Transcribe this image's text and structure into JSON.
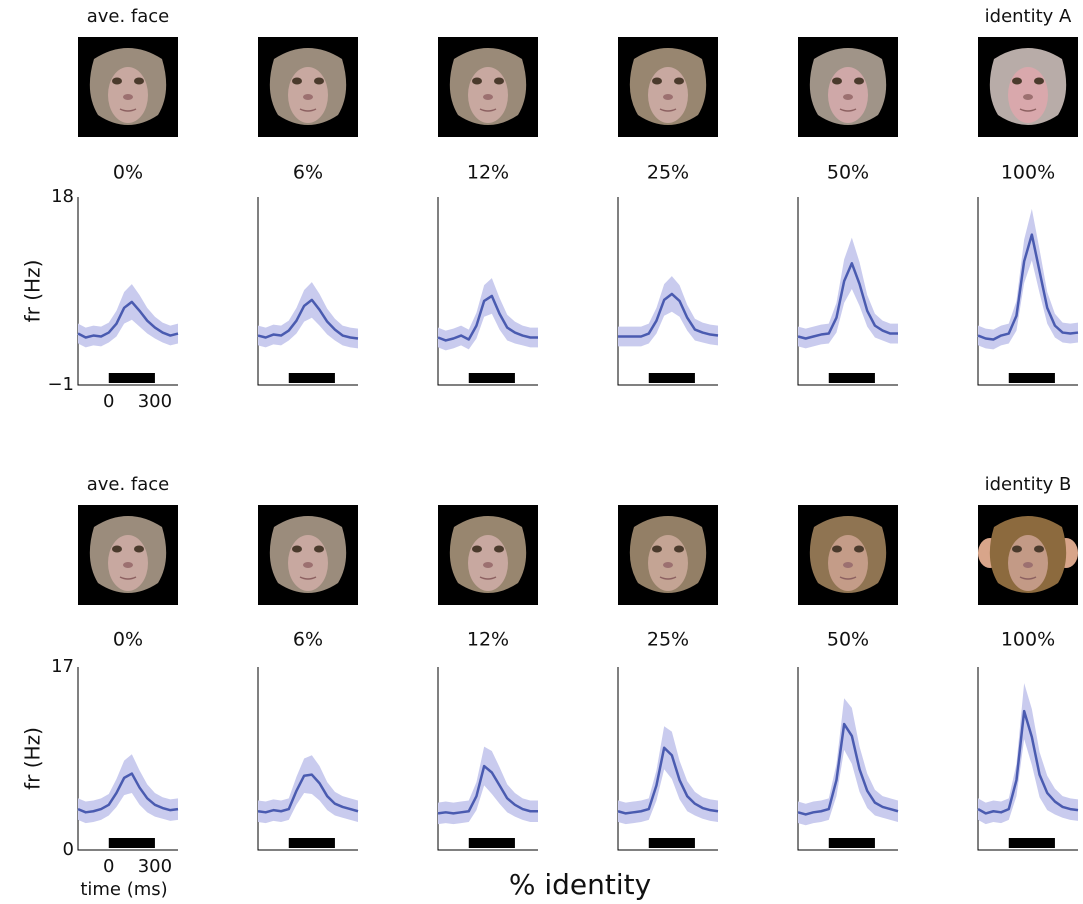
{
  "xlabel": "% identity",
  "chart_data": [
    {
      "type": "line",
      "image_label": "ave. face",
      "title": "0%",
      "ylabel": "fr (Hz)",
      "xlim": [
        -200,
        450
      ],
      "xticks": [
        0,
        300
      ],
      "ylim": [
        -1,
        18
      ],
      "yticks": [
        {
          "value": -1,
          "label": "−1"
        },
        18
      ],
      "stimulus": [
        0,
        300
      ],
      "x": [
        -200,
        -150,
        -100,
        -50,
        0,
        50,
        100,
        150,
        200,
        250,
        300,
        350,
        400,
        450
      ],
      "series": [
        {
          "color": "#4a5bb0",
          "band_color": "#c9cbee",
          "values": [
            4.2,
            3.8,
            4.0,
            3.9,
            4.3,
            5.2,
            6.8,
            7.4,
            6.5,
            5.5,
            4.8,
            4.3,
            4.0,
            4.2
          ],
          "errors": [
            1,
            1,
            1,
            1,
            1,
            1.3,
            1.6,
            1.8,
            1.6,
            1.3,
            1.1,
            1,
            1,
            1
          ]
        }
      ]
    },
    {
      "type": "line",
      "title": "6%",
      "xlim": [
        -200,
        450
      ],
      "ylim": [
        -1,
        18
      ],
      "stimulus": [
        0,
        300
      ],
      "x": [
        -200,
        -150,
        -100,
        -50,
        0,
        50,
        100,
        150,
        200,
        250,
        300,
        350,
        400,
        450
      ],
      "series": [
        {
          "color": "#4a5bb0",
          "band_color": "#c9cbee",
          "values": [
            4.0,
            3.8,
            4.1,
            4.0,
            4.5,
            5.5,
            7.0,
            7.6,
            6.6,
            5.4,
            4.6,
            4.0,
            3.8,
            3.7
          ],
          "errors": [
            1,
            1,
            1,
            1,
            1,
            1.3,
            1.6,
            1.8,
            1.6,
            1.3,
            1.1,
            1,
            1,
            1
          ]
        }
      ]
    },
    {
      "type": "line",
      "title": "12%",
      "xlim": [
        -200,
        450
      ],
      "ylim": [
        -1,
        18
      ],
      "stimulus": [
        0,
        300
      ],
      "x": [
        -200,
        -150,
        -100,
        -50,
        0,
        50,
        100,
        150,
        200,
        250,
        300,
        350,
        400,
        450
      ],
      "series": [
        {
          "color": "#4a5bb0",
          "band_color": "#c9cbee",
          "values": [
            3.8,
            3.5,
            3.7,
            4.0,
            3.6,
            5.0,
            7.5,
            8.0,
            6.2,
            4.8,
            4.3,
            4.0,
            3.8,
            3.8
          ],
          "errors": [
            1,
            1,
            1,
            1,
            1,
            1.3,
            1.6,
            1.8,
            1.6,
            1.3,
            1.1,
            1,
            1,
            1
          ]
        }
      ]
    },
    {
      "type": "line",
      "title": "25%",
      "xlim": [
        -200,
        450
      ],
      "ylim": [
        -1,
        18
      ],
      "stimulus": [
        0,
        300
      ],
      "x": [
        -200,
        -150,
        -100,
        -50,
        0,
        50,
        100,
        150,
        200,
        250,
        300,
        350,
        400,
        450
      ],
      "series": [
        {
          "color": "#4a5bb0",
          "band_color": "#c9cbee",
          "values": [
            3.9,
            3.9,
            3.9,
            3.9,
            4.2,
            5.5,
            7.6,
            8.2,
            7.5,
            5.8,
            4.6,
            4.3,
            4.1,
            4.0
          ],
          "errors": [
            1,
            1,
            1,
            1,
            1,
            1.3,
            1.6,
            1.8,
            1.6,
            1.3,
            1.1,
            1,
            1,
            1
          ]
        }
      ]
    },
    {
      "type": "line",
      "title": "50%",
      "xlim": [
        -200,
        450
      ],
      "ylim": [
        -1,
        18
      ],
      "stimulus": [
        0,
        300
      ],
      "x": [
        -200,
        -150,
        -100,
        -50,
        0,
        50,
        100,
        150,
        200,
        250,
        300,
        350,
        400,
        450
      ],
      "series": [
        {
          "color": "#4a5bb0",
          "band_color": "#c9cbee",
          "values": [
            3.9,
            3.7,
            3.9,
            4.1,
            4.2,
            5.8,
            9.5,
            11.3,
            9.2,
            6.5,
            5.0,
            4.5,
            4.2,
            4.2
          ],
          "errors": [
            1,
            1,
            1,
            1,
            1,
            1.5,
            2.2,
            2.6,
            2.2,
            1.6,
            1.2,
            1,
            1,
            1
          ]
        }
      ]
    },
    {
      "type": "line",
      "image_label": "identity A",
      "title": "100%",
      "xlim": [
        -200,
        450
      ],
      "ylim": [
        -1,
        18
      ],
      "stimulus": [
        0,
        300
      ],
      "x": [
        -200,
        -150,
        -100,
        -50,
        0,
        50,
        100,
        150,
        200,
        250,
        300,
        350,
        400,
        450
      ],
      "series": [
        {
          "color": "#4a5bb0",
          "band_color": "#c9cbee",
          "values": [
            4.0,
            3.7,
            3.6,
            4.0,
            4.2,
            6.0,
            11.5,
            14.2,
            10.5,
            6.8,
            5.0,
            4.3,
            4.2,
            4.3
          ],
          "errors": [
            1,
            1,
            1,
            1,
            1,
            1.5,
            2.2,
            2.6,
            2.2,
            1.6,
            1.2,
            1,
            1,
            1
          ]
        }
      ]
    },
    {
      "type": "line",
      "image_label": "ave. face",
      "title": "0%",
      "ylabel": "fr (Hz)",
      "xlabel": "time (ms)",
      "xlim": [
        -200,
        450
      ],
      "xticks": [
        0,
        300
      ],
      "ylim": [
        0,
        17
      ],
      "yticks": [
        0,
        17
      ],
      "stimulus": [
        0,
        300
      ],
      "x": [
        -200,
        -150,
        -100,
        -50,
        0,
        50,
        100,
        150,
        200,
        250,
        300,
        350,
        400,
        450
      ],
      "series": [
        {
          "color": "#4a5bb0",
          "band_color": "#c9cbee",
          "values": [
            3.8,
            3.5,
            3.6,
            3.8,
            4.2,
            5.3,
            6.7,
            7.1,
            5.8,
            4.8,
            4.2,
            3.9,
            3.7,
            3.8
          ],
          "errors": [
            1,
            1,
            1,
            1,
            1,
            1.3,
            1.6,
            1.8,
            1.6,
            1.3,
            1.1,
            1,
            1,
            1
          ]
        }
      ]
    },
    {
      "type": "line",
      "title": "6%",
      "xlim": [
        -200,
        450
      ],
      "ylim": [
        0,
        17
      ],
      "stimulus": [
        0,
        300
      ],
      "x": [
        -200,
        -150,
        -100,
        -50,
        0,
        50,
        100,
        150,
        200,
        250,
        300,
        350,
        400,
        450
      ],
      "series": [
        {
          "color": "#4a5bb0",
          "band_color": "#c9cbee",
          "values": [
            3.6,
            3.5,
            3.7,
            3.6,
            3.8,
            5.5,
            6.9,
            7.0,
            6.2,
            5.0,
            4.3,
            4.0,
            3.8,
            3.6
          ],
          "errors": [
            1,
            1,
            1,
            1,
            1,
            1.3,
            1.6,
            1.8,
            1.6,
            1.3,
            1.1,
            1,
            1,
            1
          ]
        }
      ]
    },
    {
      "type": "line",
      "title": "12%",
      "xlim": [
        -200,
        450
      ],
      "ylim": [
        0,
        17
      ],
      "stimulus": [
        0,
        300
      ],
      "x": [
        -200,
        -150,
        -100,
        -50,
        0,
        50,
        100,
        150,
        200,
        250,
        300,
        350,
        400,
        450
      ],
      "series": [
        {
          "color": "#4a5bb0",
          "band_color": "#c9cbee",
          "values": [
            3.4,
            3.5,
            3.4,
            3.5,
            3.6,
            5.0,
            7.8,
            7.2,
            6.0,
            4.8,
            4.2,
            3.8,
            3.6,
            3.6
          ],
          "errors": [
            1,
            1,
            1,
            1,
            1,
            1.3,
            1.8,
            2.0,
            1.7,
            1.3,
            1.1,
            1,
            1,
            1
          ]
        }
      ]
    },
    {
      "type": "line",
      "title": "25%",
      "xlim": [
        -200,
        450
      ],
      "ylim": [
        0,
        17
      ],
      "stimulus": [
        0,
        300
      ],
      "x": [
        -200,
        -150,
        -100,
        -50,
        0,
        50,
        100,
        150,
        200,
        250,
        300,
        350,
        400,
        450
      ],
      "series": [
        {
          "color": "#4a5bb0",
          "band_color": "#c9cbee",
          "values": [
            3.6,
            3.4,
            3.5,
            3.6,
            3.8,
            6.0,
            9.5,
            8.8,
            6.5,
            5.0,
            4.3,
            3.9,
            3.7,
            3.6
          ],
          "errors": [
            1,
            1,
            1,
            1,
            1,
            1.4,
            2.0,
            2.2,
            1.8,
            1.4,
            1.1,
            1,
            1,
            1
          ]
        }
      ]
    },
    {
      "type": "line",
      "title": "50%",
      "xlim": [
        -200,
        450
      ],
      "ylim": [
        0,
        17
      ],
      "stimulus": [
        0,
        300
      ],
      "x": [
        -200,
        -150,
        -100,
        -50,
        0,
        50,
        100,
        150,
        200,
        250,
        300,
        350,
        400,
        450
      ],
      "series": [
        {
          "color": "#4a5bb0",
          "band_color": "#c9cbee",
          "values": [
            3.5,
            3.3,
            3.5,
            3.6,
            3.8,
            6.5,
            11.7,
            10.6,
            7.5,
            5.5,
            4.4,
            4.0,
            3.8,
            3.6
          ],
          "errors": [
            1,
            1,
            1,
            1,
            1,
            1.5,
            2.4,
            2.6,
            2.1,
            1.6,
            1.2,
            1,
            1,
            1
          ]
        }
      ]
    },
    {
      "type": "line",
      "image_label": "identity B",
      "title": "100%",
      "xlim": [
        -200,
        450
      ],
      "ylim": [
        0,
        17
      ],
      "stimulus": [
        0,
        300
      ],
      "x": [
        -200,
        -150,
        -100,
        -50,
        0,
        50,
        100,
        150,
        200,
        250,
        300,
        350,
        400,
        450
      ],
      "series": [
        {
          "color": "#4a5bb0",
          "band_color": "#c9cbee",
          "values": [
            3.8,
            3.4,
            3.6,
            3.5,
            3.8,
            6.5,
            12.9,
            10.5,
            7.0,
            5.3,
            4.5,
            4.0,
            3.8,
            3.7
          ],
          "errors": [
            1,
            1,
            1,
            1,
            1,
            1.5,
            2.6,
            2.6,
            2.1,
            1.6,
            1.2,
            1,
            1,
            1
          ]
        }
      ]
    }
  ]
}
